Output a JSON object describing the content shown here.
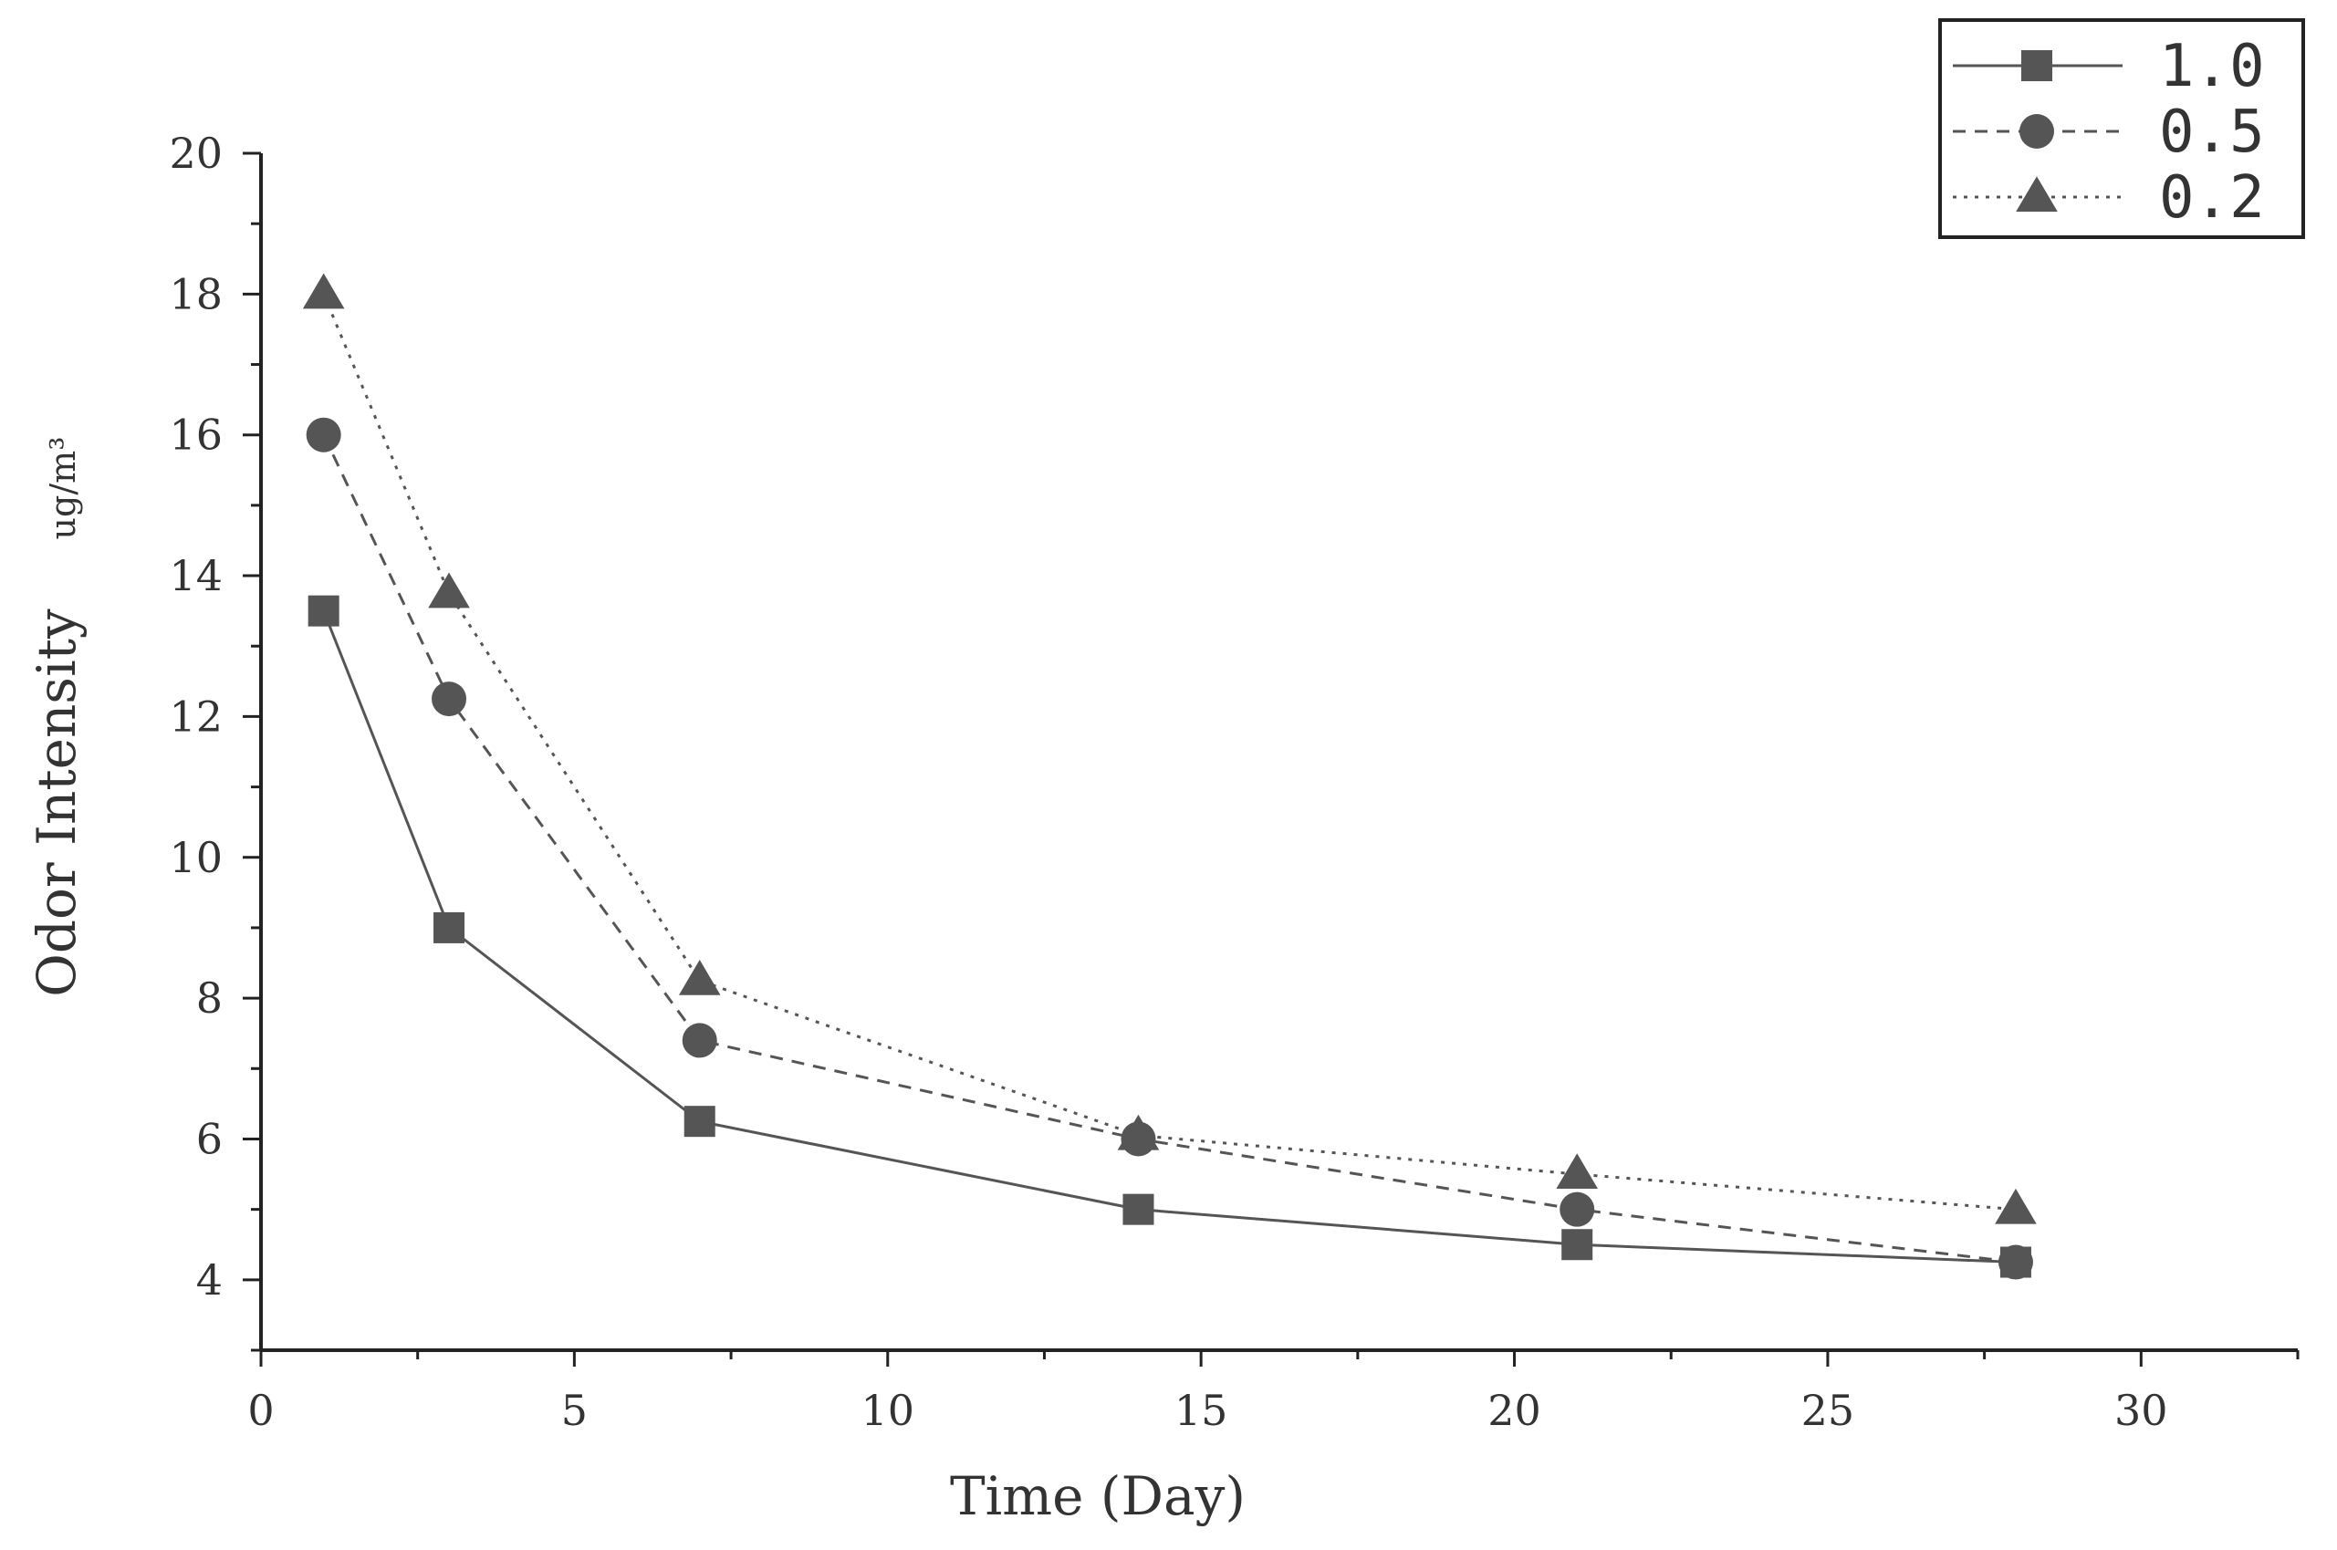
{
  "chart_data": {
    "type": "line",
    "title": "",
    "xlabel": "Time (Day)",
    "ylabel": "Odor Intensity",
    "ylabel_unit": "ug/m³",
    "xlim": [
      0,
      32.5
    ],
    "ylim": [
      3,
      20
    ],
    "xticks": [
      0,
      5,
      10,
      15,
      20,
      25,
      30
    ],
    "yticks": [
      4,
      6,
      8,
      10,
      12,
      14,
      16,
      18,
      20
    ],
    "grid": false,
    "legend_position": "top-right",
    "x": [
      1,
      3,
      7,
      14,
      21,
      28
    ],
    "series": [
      {
        "name": "1.0",
        "marker": "square",
        "line": "solid",
        "color": "#555555",
        "values": [
          13.5,
          9.0,
          6.25,
          5.0,
          4.5,
          4.25
        ]
      },
      {
        "name": "0.5",
        "marker": "circle",
        "line": "dashed",
        "color": "#555555",
        "values": [
          16.0,
          12.25,
          7.4,
          6.0,
          5.0,
          4.25
        ]
      },
      {
        "name": "0.2",
        "marker": "triangle",
        "line": "dotted",
        "color": "#555555",
        "values": [
          18.0,
          13.75,
          8.25,
          6.05,
          5.5,
          5.0
        ]
      }
    ]
  }
}
